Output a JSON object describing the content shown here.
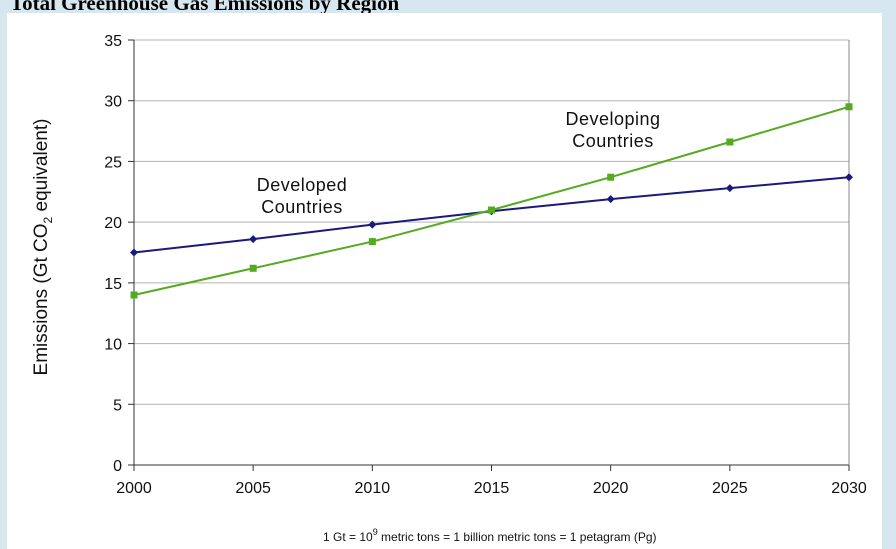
{
  "page": {
    "title": "Total Greenhouse Gas Emissions by Region"
  },
  "chart_data": {
    "type": "line",
    "title": "Total Greenhouse Gas Emissions by Region",
    "xlabel": "",
    "ylabel_parts": [
      "Emissions (Gt CO",
      "2",
      " equivalent)"
    ],
    "x": [
      2000,
      2005,
      2010,
      2015,
      2020,
      2025,
      2030
    ],
    "xlim": [
      2000,
      2030
    ],
    "ylim": [
      0,
      35
    ],
    "yticks": [
      0,
      5,
      10,
      15,
      20,
      25,
      30,
      35
    ],
    "grid": true,
    "series": [
      {
        "name_lines": [
          "Developed",
          "Countries"
        ],
        "color": "#1a1a7e",
        "marker": "diamond",
        "values": [
          17.5,
          18.6,
          19.8,
          20.9,
          21.9,
          22.8,
          23.7
        ]
      },
      {
        "name_lines": [
          "Developing",
          "Countries"
        ],
        "color": "#55aa1f",
        "marker": "square",
        "values": [
          14.0,
          16.2,
          18.4,
          21.0,
          23.7,
          26.6,
          29.5
        ]
      }
    ],
    "footnote": {
      "part1": "1 Gt = 10",
      "sup": "9",
      "part2": " metric tons = 1 billion metric tons = 1 petagram (Pg)"
    }
  }
}
